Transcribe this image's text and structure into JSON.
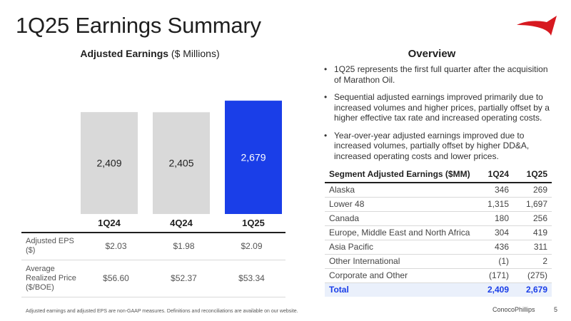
{
  "title": "1Q25 Earnings Summary",
  "logo": {
    "icon": "conocophillips-logo-icon",
    "color": "#d71920"
  },
  "chart_heading": {
    "bold": "Adjusted Earnings",
    "unit": " ($ Millions)"
  },
  "chart_data": {
    "type": "bar",
    "title": "Adjusted Earnings ($ Millions)",
    "categories": [
      "1Q24",
      "4Q24",
      "1Q25"
    ],
    "values": [
      2409,
      2405,
      2679
    ],
    "value_labels": [
      "2,409",
      "2,405",
      "2,679"
    ],
    "colors": [
      "#d9d9d9",
      "#d9d9d9",
      "#1a3ee8"
    ],
    "label_colors": [
      "#222222",
      "#222222",
      "#ffffff"
    ],
    "ylim": [
      0,
      2900
    ],
    "grid": false,
    "xlabel": "",
    "ylabel": ""
  },
  "chart_table": {
    "rows": [
      {
        "label": "Adjusted EPS ($)",
        "values": [
          "$2.03",
          "$1.98",
          "$2.09"
        ]
      },
      {
        "label": "Average Realized Price ($/BOE)",
        "values": [
          "$56.60",
          "$52.37",
          "$53.34"
        ]
      }
    ]
  },
  "overview": {
    "heading": "Overview",
    "bullets": [
      "1Q25 represents the first full quarter after the acquisition of Marathon Oil.",
      "Sequential adjusted earnings improved primarily due to increased volumes and higher prices, partially offset by a higher effective tax rate and increased operating costs.",
      "Year-over-year adjusted earnings improved due to increased volumes, partially offset by higher DD&A, increased operating costs and lower prices."
    ]
  },
  "segment_table": {
    "headers": [
      "Segment Adjusted Earnings ($MM)",
      "1Q24",
      "1Q25"
    ],
    "rows": [
      [
        "Alaska",
        "346",
        "269"
      ],
      [
        "Lower 48",
        "1,315",
        "1,697"
      ],
      [
        "Canada",
        "180",
        "256"
      ],
      [
        "Europe, Middle East and North Africa",
        "304",
        "419"
      ],
      [
        "Asia Pacific",
        "436",
        "311"
      ],
      [
        "Other International",
        "(1)",
        "2"
      ],
      [
        "Corporate and Other",
        "(171)",
        "(275)"
      ]
    ],
    "total": [
      "Total",
      "2,409",
      "2,679"
    ]
  },
  "footnote": "Adjusted earnings and adjusted EPS are non-GAAP measures. Definitions and reconciliations are available on our website.",
  "footer": {
    "company": "ConocoPhillips",
    "page": "5"
  }
}
